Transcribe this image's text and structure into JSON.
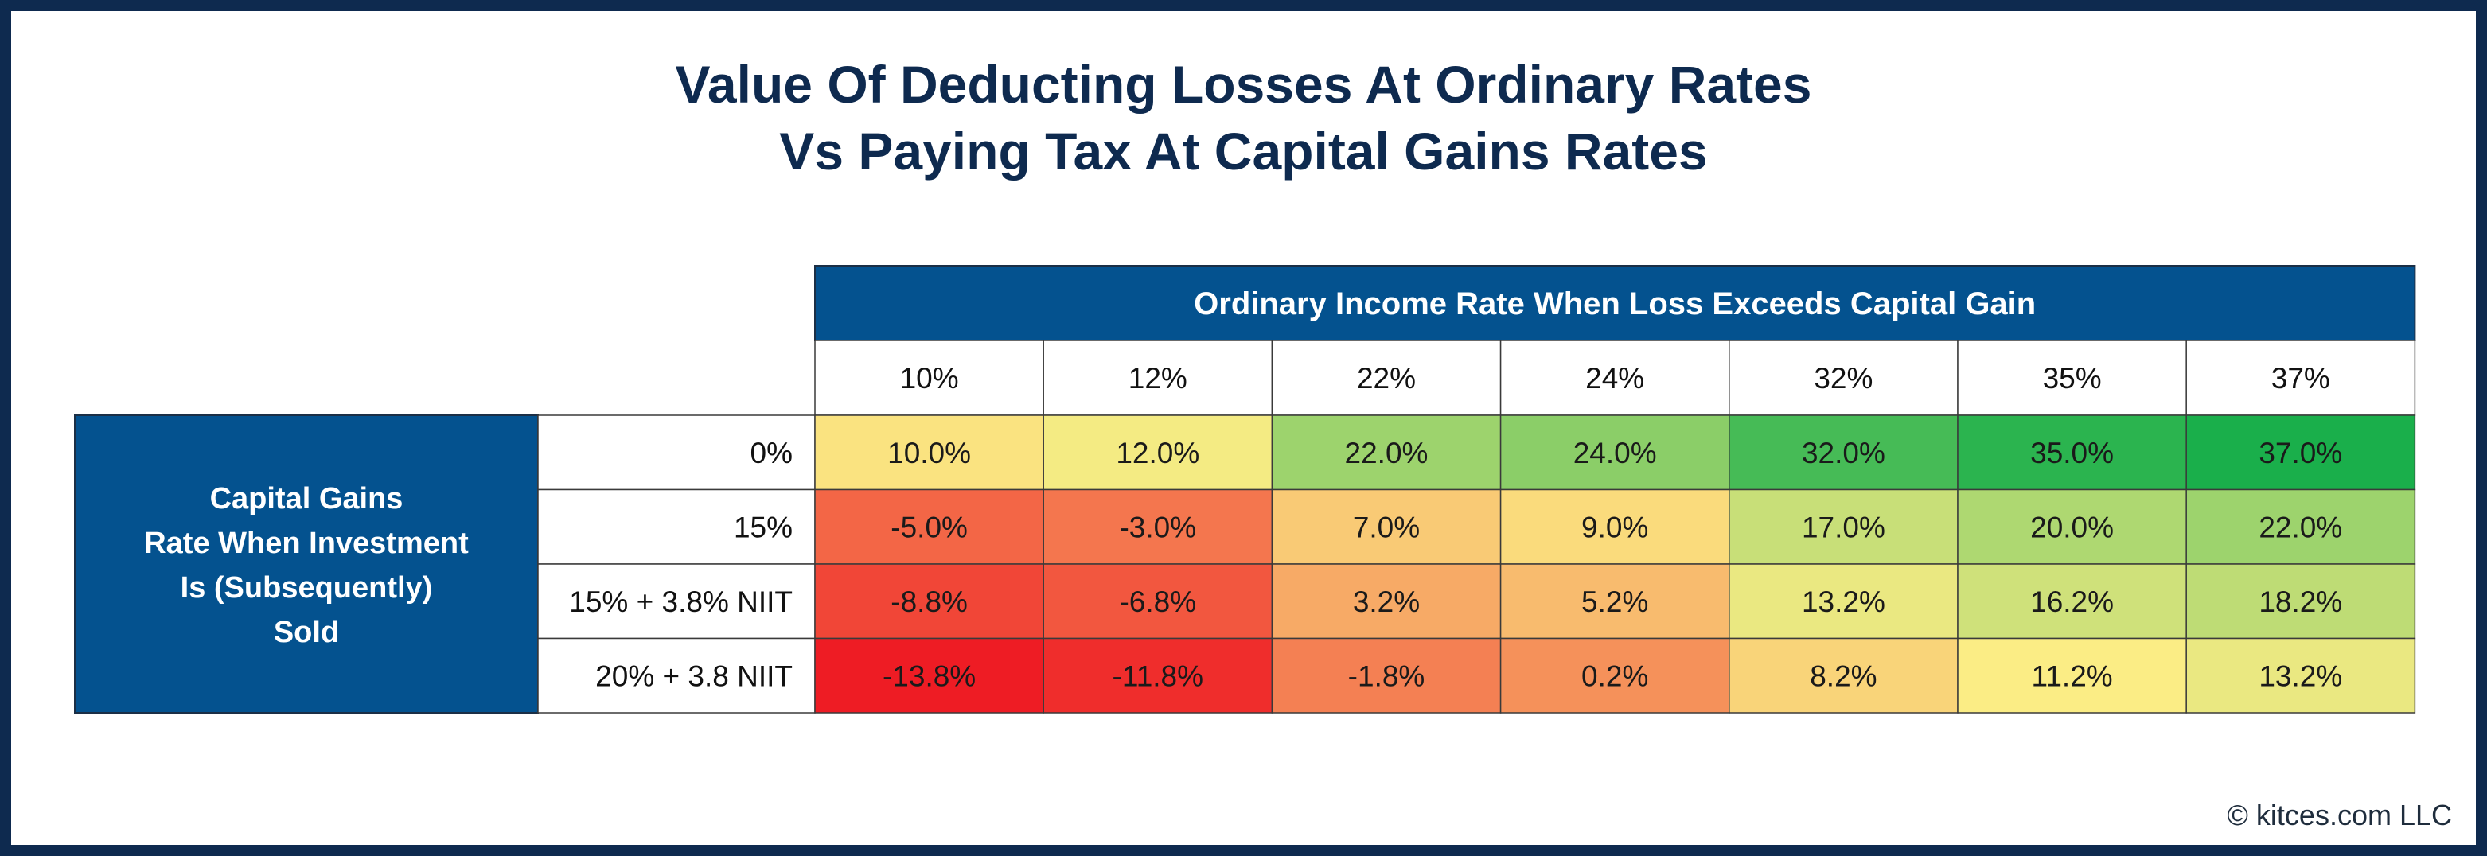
{
  "chart_data": {
    "type": "table",
    "title": [
      "Value Of Deducting Losses At Ordinary Rates",
      "Vs Paying Tax At Capital Gains Rates"
    ],
    "column_header": "Ordinary Income Rate When Loss Exceeds Capital Gain",
    "columns": [
      "10%",
      "12%",
      "22%",
      "24%",
      "32%",
      "35%",
      "37%"
    ],
    "row_header": [
      "Capital Gains",
      "Rate When Investment",
      "Is (Subsequently)",
      "Sold"
    ],
    "rows": [
      "0%",
      "15%",
      "15% + 3.8% NIIT",
      "20% + 3.8 NIIT"
    ],
    "values": [
      [
        10.0,
        12.0,
        22.0,
        24.0,
        32.0,
        35.0,
        37.0
      ],
      [
        -5.0,
        -3.0,
        7.0,
        9.0,
        17.0,
        20.0,
        22.0
      ],
      [
        -8.8,
        -6.8,
        3.2,
        5.2,
        13.2,
        16.2,
        18.2
      ],
      [
        -13.8,
        -11.8,
        -1.8,
        0.2,
        8.2,
        11.2,
        13.2
      ]
    ],
    "value_labels": [
      [
        "10.0%",
        "12.0%",
        "22.0%",
        "24.0%",
        "32.0%",
        "35.0%",
        "37.0%"
      ],
      [
        "-5.0%",
        "-3.0%",
        "7.0%",
        "9.0%",
        "17.0%",
        "20.0%",
        "22.0%"
      ],
      [
        "-8.8%",
        "-6.8%",
        "3.2%",
        "5.2%",
        "13.2%",
        "16.2%",
        "18.2%"
      ],
      [
        "-13.8%",
        "-11.8%",
        "-1.8%",
        "0.2%",
        "8.2%",
        "11.2%",
        "13.2%"
      ]
    ],
    "colors": {
      "header_fill": "#04528f",
      "header_text": "#ffffff",
      "low": "#ee1c24",
      "mid": "#fbed85",
      "high": "#1aaf4b"
    }
  },
  "footer": {
    "copyright": "© kitces.com LLC"
  }
}
